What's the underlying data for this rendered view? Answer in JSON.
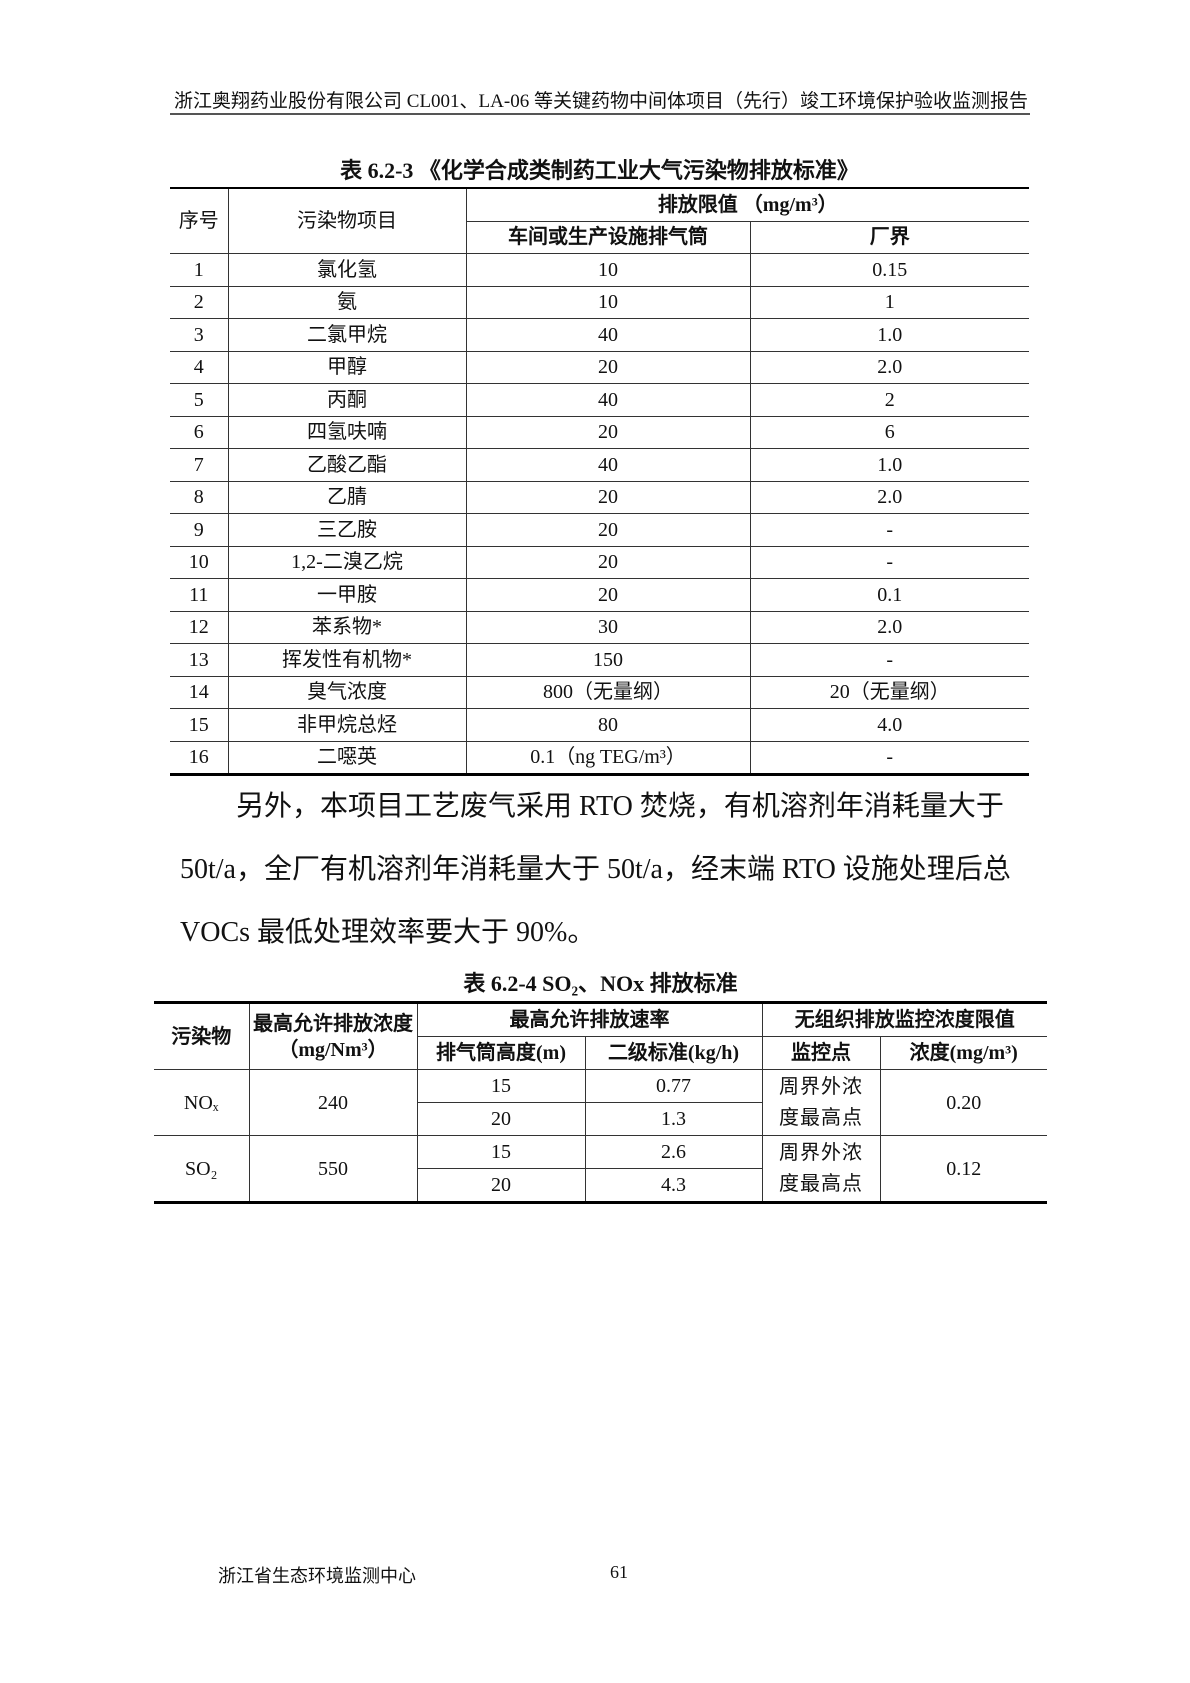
{
  "header": "浙江奥翔药业股份有限公司 CL001、LA-06 等关键药物中间体项目（先行）竣工环境保护验收监测报告",
  "table1": {
    "caption": "表 6.2-3 《化学合成类制药工业大气污染物排放标准》",
    "headers": {
      "no": "序号",
      "item": "污染物项目",
      "limit": "排放限值 （mg/m³）",
      "stack": "车间或生产设施排气筒",
      "boundary": "厂界"
    },
    "rows": [
      [
        "1",
        "氯化氢",
        "10",
        "0.15"
      ],
      [
        "2",
        "氨",
        "10",
        "1"
      ],
      [
        "3",
        "二氯甲烷",
        "40",
        "1.0"
      ],
      [
        "4",
        "甲醇",
        "20",
        "2.0"
      ],
      [
        "5",
        "丙酮",
        "40",
        "2"
      ],
      [
        "6",
        "四氢呋喃",
        "20",
        "6"
      ],
      [
        "7",
        "乙酸乙酯",
        "40",
        "1.0"
      ],
      [
        "8",
        "乙腈",
        "20",
        "2.0"
      ],
      [
        "9",
        "三乙胺",
        "20",
        "-"
      ],
      [
        "10",
        "1,2-二溴乙烷",
        "20",
        "-"
      ],
      [
        "11",
        "一甲胺",
        "20",
        "0.1"
      ],
      [
        "12",
        "苯系物*",
        "30",
        "2.0"
      ],
      [
        "13",
        "挥发性有机物*",
        "150",
        "-"
      ],
      [
        "14",
        "臭气浓度",
        "800（无量纲）",
        "20（无量纲）"
      ],
      [
        "15",
        "非甲烷总烃",
        "80",
        "4.0"
      ],
      [
        "16",
        "二噁英",
        "0.1（ng TEG/m³）",
        "-"
      ]
    ]
  },
  "paragraph": "另外，本项目工艺废气采用 RTO 焚烧，有机溶剂年消耗量大于50t/a，全厂有机溶剂年消耗量大于 50t/a，经末端 RTO 设施处理后总VOCs 最低处理效率要大于 90%。",
  "table2": {
    "caption": "表 6.2-4 SO₂、NOx 排放标准",
    "headers": {
      "pollutant": "污染物",
      "conc": "最高允许排放浓度（mg/Nm³）",
      "rate": "最高允许排放速率",
      "height": "排气筒高度(m)",
      "level2": "二级标准(kg/h)",
      "fugitive": "无组织排放监控浓度限值",
      "point": "监控点",
      "fconc": "浓度(mg/m³)"
    },
    "groups": [
      {
        "pollutant": "NOₓ",
        "conc": "240",
        "rows": [
          [
            "15",
            "0.77"
          ],
          [
            "20",
            "1.3"
          ]
        ],
        "point": "周界外浓度最高点",
        "fconc": "0.20"
      },
      {
        "pollutant": "SO₂",
        "conc": "550",
        "rows": [
          [
            "15",
            "2.6"
          ],
          [
            "20",
            "4.3"
          ]
        ],
        "point": "周界外浓度最高点",
        "fconc": "0.12"
      }
    ]
  },
  "footer": {
    "org": "浙江省生态环境监测中心",
    "page": "61"
  }
}
